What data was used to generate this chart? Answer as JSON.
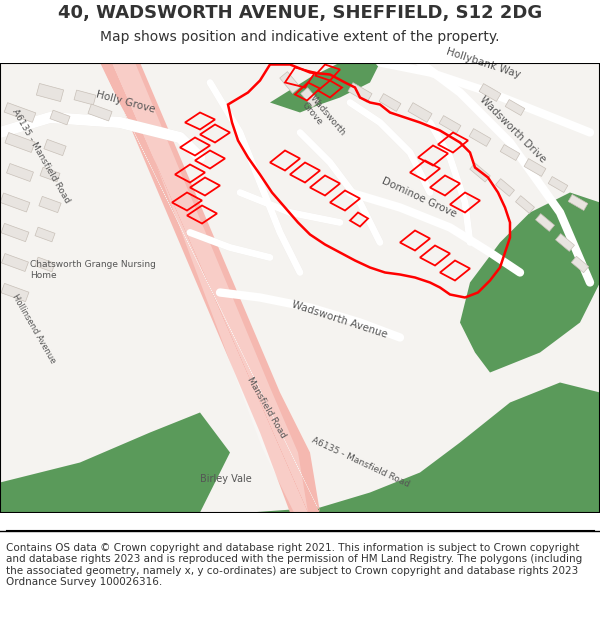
{
  "title_line1": "40, WADSWORTH AVENUE, SHEFFIELD, S12 2DG",
  "title_line2": "Map shows position and indicative extent of the property.",
  "footer": "Contains OS data © Crown copyright and database right 2021. This information is subject to Crown copyright and database rights 2023 and is reproduced with the permission of HM Land Registry. The polygons (including the associated geometry, namely x, y co-ordinates) are subject to Crown copyright and database rights 2023 Ordnance Survey 100026316.",
  "map_bg": "#f5f3f0",
  "road_pink": "#f5b8b0",
  "road_light": "#ffffff",
  "road_stroke": "#d0c8c0",
  "green_areas": "#5a9a5a",
  "building_fill": "#e8e4e0",
  "building_stroke": "#c8c0b8",
  "red_outline": "#ff0000",
  "text_color": "#333333",
  "label_color": "#555555",
  "border_color": "#000000",
  "title_fontsize": 13,
  "subtitle_fontsize": 10,
  "footer_fontsize": 7.5,
  "label_fontsize": 7.5,
  "fig_width": 6.0,
  "fig_height": 6.25,
  "dpi": 100
}
